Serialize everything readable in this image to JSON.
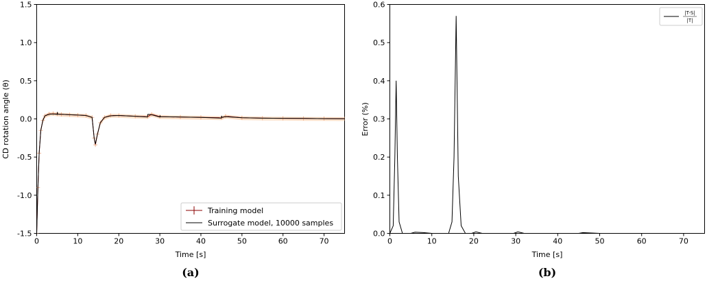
{
  "chart_data": [
    {
      "type": "line",
      "panel_label": "(a)",
      "xlabel": "Time [s]",
      "ylabel": "CD rotation angle (θ)",
      "xlim": [
        0,
        75
      ],
      "ylim": [
        -1.5,
        1.5
      ],
      "xticks": [
        "0",
        "10",
        "20",
        "30",
        "40",
        "50",
        "60",
        "70"
      ],
      "yticks": [
        "-1.5",
        "-1.0",
        "-0.5",
        "0.0",
        "0.5",
        "1.0",
        "1.5"
      ],
      "legend_position": "lower right",
      "series": [
        {
          "name": "Training model",
          "color": "#8b0000",
          "marker": "plus",
          "x": [
            0.0,
            0.3,
            0.6,
            1.0,
            1.5,
            2.0,
            3.0,
            4.0,
            5.0,
            6.0,
            8.0,
            10.0,
            12.0,
            13.5,
            14.0,
            14.3,
            14.8,
            15.5,
            16.5,
            18.0,
            20.0,
            24.0,
            27.0,
            28.0,
            30.0,
            35.0,
            40.0,
            45.0,
            46.0,
            50.0,
            55.0,
            60.0,
            65.0,
            70.0,
            75.0
          ],
          "y": [
            -1.5,
            -0.9,
            -0.45,
            -0.15,
            -0.02,
            0.04,
            0.065,
            0.07,
            0.065,
            0.06,
            0.055,
            0.05,
            0.045,
            0.02,
            -0.25,
            -0.34,
            -0.2,
            -0.05,
            0.02,
            0.045,
            0.045,
            0.035,
            0.03,
            0.06,
            0.03,
            0.025,
            0.02,
            0.015,
            0.035,
            0.015,
            0.01,
            0.008,
            0.006,
            0.004,
            0.003
          ]
        },
        {
          "name": "Surrogate model, 10000 samples",
          "color": "#000000",
          "x": [
            0.0,
            0.3,
            0.6,
            1.0,
            1.5,
            2.0,
            3.0,
            4.0,
            5.0,
            5.05,
            5.1,
            6.0,
            8.0,
            10.0,
            12.0,
            13.5,
            14.0,
            14.3,
            14.8,
            15.5,
            16.5,
            18.0,
            20.0,
            24.0,
            27.0,
            27.05,
            27.1,
            28.0,
            30.0,
            30.05,
            30.1,
            35.0,
            40.0,
            45.0,
            45.05,
            45.1,
            46.0,
            50.0,
            55.0,
            60.0,
            65.0,
            70.0,
            75.0
          ],
          "y": [
            -1.5,
            -0.9,
            -0.45,
            -0.15,
            -0.02,
            0.04,
            0.06,
            0.065,
            0.06,
            0.09,
            0.06,
            0.06,
            0.055,
            0.05,
            0.045,
            0.02,
            -0.25,
            -0.33,
            -0.2,
            -0.05,
            0.02,
            0.04,
            0.045,
            0.035,
            0.025,
            0.05,
            0.06,
            0.055,
            0.025,
            0.045,
            0.03,
            0.025,
            0.02,
            0.01,
            0.04,
            0.02,
            0.03,
            0.015,
            0.01,
            0.008,
            0.006,
            0.004,
            0.003
          ]
        }
      ]
    },
    {
      "type": "line",
      "panel_label": "(b)",
      "xlabel": "Time [s]",
      "ylabel": "Error (%)",
      "xlim": [
        0,
        75
      ],
      "ylim": [
        0,
        0.6
      ],
      "xticks": [
        "0",
        "10",
        "20",
        "30",
        "40",
        "50",
        "60",
        "70"
      ],
      "yticks": [
        "0.0",
        "0.1",
        "0.2",
        "0.3",
        "0.4",
        "0.5",
        "0.6"
      ],
      "legend_position": "upper right",
      "legend_numerator": "|T-S|",
      "legend_denominator": "|T|",
      "series": [
        {
          "name": "|T-S| / |T|",
          "color": "#000000",
          "x": [
            0.0,
            0.8,
            1.2,
            1.5,
            1.8,
            2.2,
            3.0,
            5.0,
            6.0,
            8.0,
            10.0,
            12.0,
            14.0,
            14.8,
            15.3,
            15.8,
            16.3,
            17.0,
            18.0,
            19.5,
            20.5,
            22.0,
            25.0,
            29.5,
            30.5,
            32.0,
            40.0,
            45.0,
            46.0,
            50.0,
            60.0,
            75.0
          ],
          "y": [
            0.0,
            0.02,
            0.2,
            0.4,
            0.2,
            0.03,
            0.0,
            0.0,
            0.003,
            0.002,
            0.0,
            0.0,
            0.0,
            0.03,
            0.2,
            0.57,
            0.15,
            0.02,
            0.0,
            0.0,
            0.004,
            0.0,
            0.0,
            0.0,
            0.004,
            0.0,
            0.0,
            0.0,
            0.002,
            0.0,
            0.0,
            0.0
          ]
        }
      ]
    }
  ]
}
